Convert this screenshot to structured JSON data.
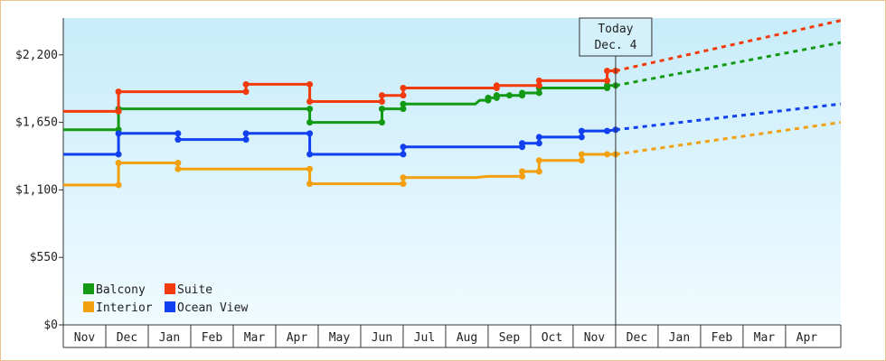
{
  "chart_data": {
    "type": "line",
    "title": "",
    "xlabel": "",
    "ylabel": "",
    "ylim": [
      0,
      2500
    ],
    "yticks": [
      0,
      550,
      1100,
      1650,
      2200
    ],
    "ytick_labels": [
      "$0",
      "$550",
      "$1,100",
      "$1,650",
      "$2,200"
    ],
    "x_unit": "months since Nov (Nov = 0)",
    "xlim": [
      0,
      18.3
    ],
    "months": [
      "Nov",
      "Dec",
      "Jan",
      "Feb",
      "Mar",
      "Apr",
      "May",
      "Jun",
      "Jul",
      "Aug",
      "Sep",
      "Oct",
      "Nov",
      "Dec",
      "Jan",
      "Feb",
      "Mar",
      "Apr"
    ],
    "today": {
      "line1": "Today",
      "line2": "Dec. 4",
      "x": 13.0
    },
    "legend_position": "bottom-left",
    "series": [
      {
        "name": "Balcony",
        "color": "#139913",
        "points": [
          [
            0,
            1590
          ],
          [
            1.3,
            1590
          ],
          [
            1.3,
            1760
          ],
          [
            5.8,
            1760
          ],
          [
            5.8,
            1650
          ],
          [
            7.5,
            1650
          ],
          [
            7.5,
            1760
          ],
          [
            8.0,
            1760
          ],
          [
            8.0,
            1800
          ],
          [
            9.7,
            1800
          ],
          [
            9.8,
            1830
          ],
          [
            10.0,
            1830
          ],
          [
            10.0,
            1850
          ],
          [
            10.2,
            1850
          ],
          [
            10.2,
            1870
          ],
          [
            10.5,
            1870
          ],
          [
            10.5,
            1870
          ],
          [
            10.8,
            1870
          ],
          [
            10.8,
            1890
          ],
          [
            11.2,
            1890
          ],
          [
            11.2,
            1930
          ],
          [
            12.8,
            1930
          ],
          [
            12.8,
            1950
          ],
          [
            13.0,
            1950
          ]
        ],
        "projection": [
          [
            13.0,
            1950
          ],
          [
            18.3,
            2300
          ]
        ]
      },
      {
        "name": "Suite",
        "color": "#f23b0c",
        "points": [
          [
            0,
            1740
          ],
          [
            1.3,
            1740
          ],
          [
            1.3,
            1900
          ],
          [
            4.3,
            1900
          ],
          [
            4.3,
            1960
          ],
          [
            5.8,
            1960
          ],
          [
            5.8,
            1820
          ],
          [
            7.5,
            1820
          ],
          [
            7.5,
            1870
          ],
          [
            8.0,
            1870
          ],
          [
            8.0,
            1930
          ],
          [
            9.7,
            1930
          ],
          [
            10.2,
            1930
          ],
          [
            10.2,
            1950
          ],
          [
            10.5,
            1950
          ],
          [
            11.2,
            1950
          ],
          [
            11.2,
            1990
          ],
          [
            12.8,
            1990
          ],
          [
            12.8,
            2070
          ],
          [
            13.0,
            2070
          ]
        ],
        "projection": [
          [
            13.0,
            2070
          ],
          [
            18.3,
            2480
          ]
        ]
      },
      {
        "name": "Interior",
        "color": "#f2a010",
        "points": [
          [
            0,
            1140
          ],
          [
            1.3,
            1140
          ],
          [
            1.3,
            1320
          ],
          [
            2.7,
            1320
          ],
          [
            2.7,
            1270
          ],
          [
            4.0,
            1270
          ],
          [
            5.8,
            1270
          ],
          [
            5.8,
            1150
          ],
          [
            7.5,
            1150
          ],
          [
            8.0,
            1150
          ],
          [
            8.0,
            1200
          ],
          [
            9.7,
            1200
          ],
          [
            10.0,
            1210
          ],
          [
            10.2,
            1210
          ],
          [
            10.5,
            1210
          ],
          [
            10.8,
            1210
          ],
          [
            10.8,
            1250
          ],
          [
            11.2,
            1250
          ],
          [
            11.2,
            1340
          ],
          [
            12.2,
            1340
          ],
          [
            12.2,
            1390
          ],
          [
            12.8,
            1390
          ],
          [
            13.0,
            1390
          ]
        ],
        "projection": [
          [
            13.0,
            1390
          ],
          [
            18.3,
            1650
          ]
        ]
      },
      {
        "name": "Ocean View",
        "color": "#1040f0",
        "points": [
          [
            0,
            1390
          ],
          [
            1.3,
            1390
          ],
          [
            1.3,
            1560
          ],
          [
            2.7,
            1560
          ],
          [
            2.7,
            1510
          ],
          [
            4.3,
            1510
          ],
          [
            4.3,
            1560
          ],
          [
            5.8,
            1560
          ],
          [
            5.8,
            1390
          ],
          [
            7.5,
            1390
          ],
          [
            8.0,
            1390
          ],
          [
            8.0,
            1450
          ],
          [
            9.7,
            1450
          ],
          [
            10.2,
            1450
          ],
          [
            10.5,
            1450
          ],
          [
            10.8,
            1450
          ],
          [
            10.8,
            1480
          ],
          [
            11.2,
            1480
          ],
          [
            11.2,
            1530
          ],
          [
            12.2,
            1530
          ],
          [
            12.2,
            1580
          ],
          [
            12.8,
            1580
          ],
          [
            13.0,
            1590
          ]
        ],
        "projection": [
          [
            13.0,
            1590
          ],
          [
            18.3,
            1800
          ]
        ]
      }
    ],
    "legend_order": [
      "Balcony",
      "Suite",
      "Interior",
      "Ocean View"
    ]
  }
}
